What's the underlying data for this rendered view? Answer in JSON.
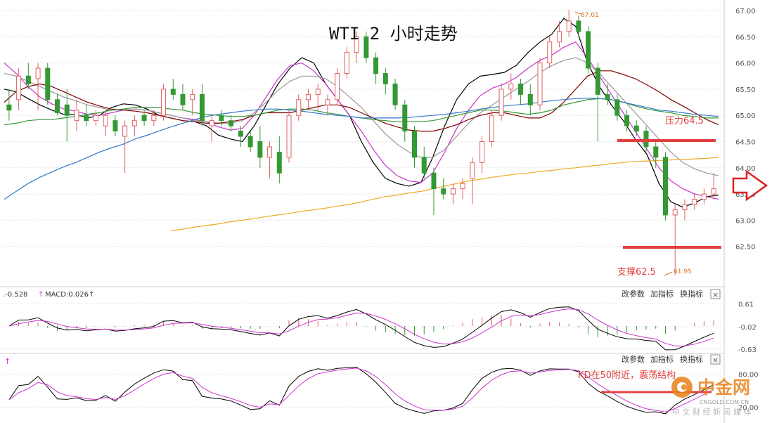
{
  "chart_data": [
    {
      "type": "candlestick",
      "title": "WTI 2 小时走势",
      "ylim": [
        61.9,
        67.0
      ],
      "yticks": [
        "67.00",
        "66.50",
        "66.00",
        "65.50",
        "65.00",
        "64.50",
        "64.00",
        "63.50",
        "63.00",
        "62.50"
      ],
      "annotations": {
        "high_label": "67.01",
        "low_label": "61.95",
        "resistance_label": "压力64.5",
        "resistance_level": 64.5,
        "support_label": "支撑62.5",
        "support_level": 62.5
      },
      "moving_averages": [
        {
          "color": "#000000",
          "values": [
            65.5,
            65.45,
            65.32,
            65.2,
            65.1,
            65.02,
            65.02,
            64.95,
            65.0,
            65.15,
            65.22,
            65.2,
            65.12,
            65.0,
            64.95,
            64.9,
            64.88,
            64.8,
            64.62,
            64.55,
            64.5,
            64.8,
            65.2,
            65.6,
            65.9,
            66.1,
            66.0,
            65.6,
            65.3,
            65.0,
            64.5,
            64.1,
            63.8,
            63.7,
            63.65,
            63.72,
            64.2,
            64.8,
            65.3,
            65.6,
            65.75,
            65.78,
            65.82,
            65.95,
            66.2,
            66.4,
            66.55,
            66.85,
            66.7,
            66.0,
            65.55,
            65.2,
            64.9,
            64.55,
            64.25,
            63.7,
            63.35,
            63.25,
            63.33,
            63.45,
            63.48
          ]
        },
        {
          "color": "#cc33cc",
          "values": [
            66.0,
            65.8,
            65.55,
            65.35,
            65.22,
            65.12,
            65.08,
            65.02,
            65.0,
            65.05,
            65.1,
            65.12,
            65.1,
            65.05,
            65.0,
            64.95,
            64.92,
            64.88,
            64.78,
            64.72,
            64.75,
            65.0,
            65.35,
            65.7,
            65.95,
            66.0,
            65.85,
            65.6,
            65.3,
            65.0,
            64.7,
            64.35,
            64.05,
            63.85,
            63.75,
            63.72,
            63.9,
            64.3,
            64.75,
            65.1,
            65.38,
            65.52,
            65.6,
            65.72,
            65.9,
            66.05,
            66.15,
            66.3,
            66.4,
            66.1,
            65.75,
            65.4,
            65.05,
            64.7,
            64.35,
            64.0,
            63.75,
            63.6,
            63.5,
            63.45,
            63.4
          ]
        },
        {
          "color": "#999999",
          "values": [
            65.8,
            65.75,
            65.65,
            65.55,
            65.45,
            65.35,
            65.28,
            65.2,
            65.15,
            65.1,
            65.1,
            65.12,
            65.1,
            65.05,
            65.0,
            64.95,
            64.9,
            64.88,
            64.85,
            64.85,
            64.9,
            65.05,
            65.25,
            65.48,
            65.65,
            65.75,
            65.75,
            65.7,
            65.55,
            65.35,
            65.15,
            64.9,
            64.65,
            64.45,
            64.3,
            64.2,
            64.2,
            64.35,
            64.6,
            64.85,
            65.05,
            65.2,
            65.35,
            65.5,
            65.65,
            65.82,
            65.95,
            66.05,
            66.1,
            66.0,
            65.8,
            65.55,
            65.3,
            65.05,
            64.8,
            64.55,
            64.3,
            64.1,
            63.98,
            63.9,
            63.85
          ]
        },
        {
          "color": "#800000",
          "values": [
            65.25,
            65.45,
            65.55,
            65.6,
            65.55,
            65.45,
            65.35,
            65.25,
            65.18,
            65.12,
            65.1,
            65.08,
            65.05,
            65.0,
            64.95,
            64.9,
            64.88,
            64.85,
            64.85,
            64.88,
            64.92,
            65.0,
            65.05,
            65.05,
            65.05,
            65.1,
            65.15,
            65.2,
            65.2,
            65.15,
            65.05,
            64.95,
            64.85,
            64.78,
            64.72,
            64.7,
            64.7,
            64.75,
            64.82,
            64.92,
            65.0,
            65.05,
            65.05,
            65.0,
            64.95,
            64.95,
            65.05,
            65.25,
            65.5,
            65.75,
            65.85,
            65.85,
            65.78,
            65.7,
            65.58,
            65.45,
            65.3,
            65.18,
            65.05,
            64.92,
            64.82
          ]
        },
        {
          "color": "#339933",
          "values": [
            64.82,
            64.85,
            64.9,
            64.92,
            64.92,
            64.95,
            64.98,
            65.02,
            65.05,
            65.1,
            65.12,
            65.15,
            65.15,
            65.15,
            65.12,
            65.1,
            65.05,
            65.02,
            65.0,
            64.98,
            64.98,
            65.0,
            65.05,
            65.1,
            65.12,
            65.12,
            65.1,
            65.05,
            65.02,
            64.98,
            64.95,
            64.92,
            64.9,
            64.88,
            64.88,
            64.88,
            64.9,
            64.95,
            65.0,
            65.05,
            65.1,
            65.1,
            65.08,
            65.05,
            65.02,
            65.05,
            65.1,
            65.2,
            65.25,
            65.3,
            65.32,
            65.3,
            65.25,
            65.18,
            65.12,
            65.08,
            65.05,
            65.0,
            64.98,
            64.95,
            64.95
          ]
        },
        {
          "color": "#3377cc",
          "values": [
            63.4,
            63.55,
            63.7,
            63.82,
            63.92,
            64.02,
            64.1,
            64.2,
            64.3,
            64.38,
            64.45,
            64.55,
            64.62,
            64.7,
            64.78,
            64.85,
            64.92,
            64.98,
            65.02,
            65.05,
            65.08,
            65.1,
            65.12,
            65.12,
            65.1,
            65.08,
            65.05,
            65.02,
            65.0,
            64.98,
            64.95,
            64.95,
            64.95,
            64.95,
            64.96,
            64.98,
            65.0,
            65.02,
            65.05,
            65.08,
            65.12,
            65.15,
            65.18,
            65.2,
            65.22,
            65.25,
            65.28,
            65.3,
            65.32,
            65.33,
            65.32,
            65.3,
            65.25,
            65.2,
            65.15,
            65.1,
            65.08,
            65.05,
            65.02,
            65.0,
            64.98
          ]
        },
        {
          "color": "#eeaa22",
          "values": [
            null,
            null,
            null,
            null,
            null,
            null,
            null,
            null,
            null,
            null,
            null,
            null,
            null,
            null,
            62.8,
            62.83,
            62.87,
            62.9,
            62.93,
            62.97,
            63.0,
            63.03,
            63.07,
            63.1,
            63.13,
            63.17,
            63.2,
            63.23,
            63.27,
            63.3,
            63.35,
            63.4,
            63.45,
            63.48,
            63.52,
            63.55,
            63.6,
            63.65,
            63.7,
            63.75,
            63.78,
            63.82,
            63.85,
            63.88,
            63.9,
            63.93,
            63.95,
            63.98,
            64.0,
            64.03,
            64.05,
            64.08,
            64.1,
            64.12,
            64.13,
            64.14,
            64.15,
            64.16,
            64.17,
            64.18,
            64.2
          ]
        }
      ],
      "candles": [
        {
          "o": 65.2,
          "h": 65.5,
          "l": 64.9,
          "c": 65.1
        },
        {
          "o": 65.3,
          "h": 65.9,
          "l": 65.1,
          "c": 65.75
        },
        {
          "o": 65.75,
          "h": 66.0,
          "l": 65.5,
          "c": 65.6
        },
        {
          "o": 65.7,
          "h": 66.0,
          "l": 65.1,
          "c": 65.9
        },
        {
          "o": 65.9,
          "h": 66.0,
          "l": 65.2,
          "c": 65.3
        },
        {
          "o": 65.3,
          "h": 65.4,
          "l": 65.0,
          "c": 65.05
        },
        {
          "o": 65.2,
          "h": 65.5,
          "l": 64.5,
          "c": 65.0
        },
        {
          "o": 64.9,
          "h": 65.3,
          "l": 64.7,
          "c": 65.1
        },
        {
          "o": 65.0,
          "h": 65.2,
          "l": 64.8,
          "c": 64.9
        },
        {
          "o": 64.9,
          "h": 65.1,
          "l": 64.8,
          "c": 65.0
        },
        {
          "o": 64.8,
          "h": 65.1,
          "l": 64.6,
          "c": 65.0
        },
        {
          "o": 64.9,
          "h": 65.0,
          "l": 64.6,
          "c": 64.7
        },
        {
          "o": 64.6,
          "h": 64.9,
          "l": 63.9,
          "c": 64.8
        },
        {
          "o": 64.8,
          "h": 65.0,
          "l": 64.6,
          "c": 64.9
        },
        {
          "o": 65.0,
          "h": 65.1,
          "l": 64.8,
          "c": 64.9
        },
        {
          "o": 64.9,
          "h": 65.1,
          "l": 64.8,
          "c": 65.0
        },
        {
          "o": 65.0,
          "h": 65.6,
          "l": 64.9,
          "c": 65.5
        },
        {
          "o": 65.5,
          "h": 65.7,
          "l": 65.3,
          "c": 65.4
        },
        {
          "o": 65.4,
          "h": 65.6,
          "l": 65.1,
          "c": 65.2
        },
        {
          "o": 65.3,
          "h": 65.5,
          "l": 65.0,
          "c": 65.4
        },
        {
          "o": 65.4,
          "h": 65.6,
          "l": 64.8,
          "c": 64.9
        },
        {
          "o": 64.8,
          "h": 65.0,
          "l": 64.5,
          "c": 64.9
        },
        {
          "o": 65.0,
          "h": 65.1,
          "l": 64.8,
          "c": 64.9
        },
        {
          "o": 64.9,
          "h": 65.0,
          "l": 64.7,
          "c": 64.8
        },
        {
          "o": 64.7,
          "h": 64.8,
          "l": 64.4,
          "c": 64.6
        },
        {
          "o": 64.6,
          "h": 64.7,
          "l": 64.3,
          "c": 64.4
        },
        {
          "o": 64.5,
          "h": 64.8,
          "l": 64.0,
          "c": 64.2
        },
        {
          "o": 64.2,
          "h": 64.5,
          "l": 63.8,
          "c": 64.4
        },
        {
          "o": 64.3,
          "h": 64.6,
          "l": 63.7,
          "c": 63.9
        },
        {
          "o": 64.2,
          "h": 65.1,
          "l": 64.1,
          "c": 65.0
        },
        {
          "o": 65.0,
          "h": 65.4,
          "l": 64.9,
          "c": 65.3
        },
        {
          "o": 65.3,
          "h": 65.5,
          "l": 65.1,
          "c": 65.4
        },
        {
          "o": 65.4,
          "h": 65.6,
          "l": 65.1,
          "c": 65.5
        },
        {
          "o": 65.2,
          "h": 65.4,
          "l": 65.0,
          "c": 65.3
        },
        {
          "o": 65.3,
          "h": 65.9,
          "l": 65.2,
          "c": 65.8
        },
        {
          "o": 65.8,
          "h": 66.3,
          "l": 65.7,
          "c": 66.2
        },
        {
          "o": 66.2,
          "h": 66.6,
          "l": 66.0,
          "c": 66.5
        },
        {
          "o": 66.5,
          "h": 66.6,
          "l": 66.0,
          "c": 66.1
        },
        {
          "o": 66.1,
          "h": 66.2,
          "l": 65.6,
          "c": 65.8
        },
        {
          "o": 65.8,
          "h": 65.9,
          "l": 65.4,
          "c": 65.6
        },
        {
          "o": 65.6,
          "h": 65.7,
          "l": 65.1,
          "c": 65.2
        },
        {
          "o": 65.2,
          "h": 65.3,
          "l": 64.5,
          "c": 64.7
        },
        {
          "o": 64.7,
          "h": 64.8,
          "l": 64.0,
          "c": 64.2
        },
        {
          "o": 64.2,
          "h": 64.4,
          "l": 63.8,
          "c": 63.9
        },
        {
          "o": 63.9,
          "h": 64.0,
          "l": 63.1,
          "c": 63.6
        },
        {
          "o": 63.6,
          "h": 63.8,
          "l": 63.4,
          "c": 63.5
        },
        {
          "o": 63.5,
          "h": 63.7,
          "l": 63.3,
          "c": 63.6
        },
        {
          "o": 63.6,
          "h": 63.8,
          "l": 63.4,
          "c": 63.7
        },
        {
          "o": 63.8,
          "h": 64.2,
          "l": 63.3,
          "c": 64.1
        },
        {
          "o": 64.1,
          "h": 64.6,
          "l": 63.9,
          "c": 64.5
        },
        {
          "o": 64.5,
          "h": 65.1,
          "l": 64.4,
          "c": 65.0
        },
        {
          "o": 65.0,
          "h": 65.6,
          "l": 64.9,
          "c": 65.5
        },
        {
          "o": 65.5,
          "h": 65.8,
          "l": 65.3,
          "c": 65.6
        },
        {
          "o": 65.6,
          "h": 65.7,
          "l": 65.2,
          "c": 65.4
        },
        {
          "o": 65.4,
          "h": 65.6,
          "l": 65.0,
          "c": 65.2
        },
        {
          "o": 65.2,
          "h": 66.1,
          "l": 65.1,
          "c": 66.0
        },
        {
          "o": 66.0,
          "h": 66.5,
          "l": 65.9,
          "c": 66.4
        },
        {
          "o": 66.4,
          "h": 66.8,
          "l": 66.3,
          "c": 66.6
        },
        {
          "o": 66.6,
          "h": 67.01,
          "l": 66.5,
          "c": 66.8
        },
        {
          "o": 66.8,
          "h": 66.9,
          "l": 66.5,
          "c": 66.6
        },
        {
          "o": 66.6,
          "h": 66.7,
          "l": 65.8,
          "c": 65.9
        },
        {
          "o": 65.9,
          "h": 66.0,
          "l": 64.5,
          "c": 65.4
        },
        {
          "o": 65.4,
          "h": 65.6,
          "l": 65.2,
          "c": 65.3
        },
        {
          "o": 65.3,
          "h": 65.4,
          "l": 64.9,
          "c": 65.0
        },
        {
          "o": 65.0,
          "h": 65.1,
          "l": 64.7,
          "c": 64.8
        },
        {
          "o": 64.8,
          "h": 64.9,
          "l": 64.6,
          "c": 64.7
        },
        {
          "o": 64.7,
          "h": 64.8,
          "l": 64.3,
          "c": 64.4
        },
        {
          "o": 64.4,
          "h": 64.5,
          "l": 64.0,
          "c": 64.2
        },
        {
          "o": 64.2,
          "h": 64.3,
          "l": 63.0,
          "c": 63.1
        },
        {
          "o": 63.1,
          "h": 63.3,
          "l": 61.95,
          "c": 63.2
        },
        {
          "o": 63.2,
          "h": 63.4,
          "l": 63.0,
          "c": 63.3
        },
        {
          "o": 63.3,
          "h": 63.5,
          "l": 63.2,
          "c": 63.4
        },
        {
          "o": 63.4,
          "h": 63.6,
          "l": 63.3,
          "c": 63.5
        },
        {
          "o": 63.5,
          "h": 63.9,
          "l": 63.4,
          "c": 63.6
        }
      ]
    },
    {
      "type": "macd",
      "label": "MACD:0.026",
      "dif_label": ".-0.528",
      "yticks": [
        "0.61",
        "-0.02",
        "-0.63"
      ],
      "ylim": [
        -0.75,
        0.75
      ]
    },
    {
      "type": "kd",
      "label": "KD在50附近，震荡结构",
      "yticks": [
        "80.00",
        "20.00"
      ],
      "ylim": [
        0,
        100
      ]
    }
  ],
  "toolbar": {
    "panel_buttons": [
      "改参数",
      "加指标",
      "换指标"
    ],
    "close_glyph": "×"
  },
  "watermark": {
    "brand": "中金网",
    "domain": "CNGOLD.COM.CN",
    "slogan": "中 文 财 经 新 闻 媒 体"
  },
  "colors": {
    "up": "#e06060",
    "down": "#339933",
    "annotation": "#e04040",
    "arrow": "#e02020"
  }
}
